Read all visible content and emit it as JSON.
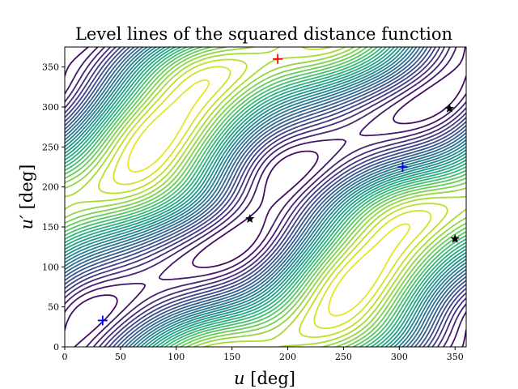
{
  "chart_data": {
    "type": "contour",
    "title": "Level lines of the squared distance function",
    "xlabel": "u [deg]",
    "xlabel_var": "u",
    "xlabel_unit": " [deg]",
    "ylabel": "u′ [deg]",
    "ylabel_var": "u′",
    "ylabel_unit": " [deg]",
    "xlim": [
      0,
      360
    ],
    "ylim": [
      0,
      375
    ],
    "xticks": [
      0,
      50,
      100,
      150,
      200,
      250,
      300,
      350
    ],
    "yticks": [
      0,
      50,
      100,
      150,
      200,
      250,
      300,
      350
    ],
    "grid": false,
    "colormap": "viridis",
    "colormap_range": [
      "#440154",
      "#fde725"
    ],
    "contour_levels": 30,
    "markers": [
      {
        "kind": "plus",
        "color": "#ff0000",
        "x": 191,
        "y": 360
      },
      {
        "kind": "plus",
        "color": "#0000ff",
        "x": 34,
        "y": 33
      },
      {
        "kind": "plus",
        "color": "#0000ff",
        "x": 303,
        "y": 225
      },
      {
        "kind": "star",
        "color": "#000000",
        "x": 166,
        "y": 160
      },
      {
        "kind": "star",
        "color": "#000000",
        "x": 345,
        "y": 298
      },
      {
        "kind": "star",
        "color": "#000000",
        "x": 350,
        "y": 135
      }
    ]
  }
}
